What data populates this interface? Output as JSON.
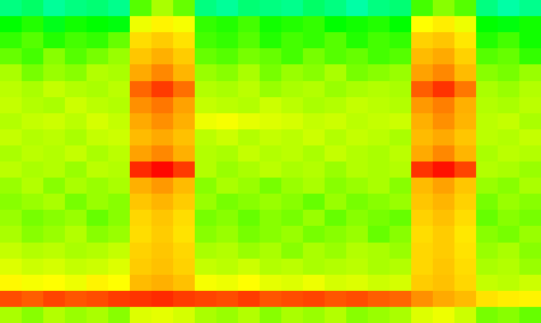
{
  "chart_data": {
    "type": "heatmap",
    "tick_labels": false,
    "color_range": [
      0,
      10
    ],
    "cells": [
      [
        3,
        3.2,
        2.8,
        3,
        3.1,
        2.9,
        4.5,
        5,
        4.6,
        3,
        2.8,
        3.1,
        3,
        2.9,
        3.2,
        3,
        2.7,
        3,
        3.1,
        4.4,
        4.8,
        4.5,
        3,
        2.7,
        2.9
      ],
      [
        4,
        4.2,
        3.8,
        4.1,
        4,
        3.9,
        5.8,
        6.2,
        5.9,
        4.3,
        4.2,
        4.4,
        4.1,
        4.2,
        4.3,
        4,
        4.1,
        4.2,
        4,
        6,
        6.3,
        5.8,
        4,
        3.9,
        4.1
      ],
      [
        4.3,
        4.5,
        4.2,
        4.4,
        4.3,
        4.6,
        6.6,
        6.9,
        6.5,
        4.4,
        4.3,
        4.5,
        4.2,
        4.4,
        4.3,
        4.5,
        4.2,
        4.4,
        4.3,
        6.8,
        7,
        6.4,
        4.2,
        4.4,
        4.1
      ],
      [
        4.6,
        4.4,
        4.8,
        4.5,
        4.7,
        4.9,
        7,
        7.4,
        6.9,
        4.6,
        4.5,
        4.7,
        4.6,
        4.4,
        4.7,
        4.5,
        4.6,
        4.4,
        4.5,
        7.2,
        7.5,
        6.8,
        4.5,
        4.6,
        4.3
      ],
      [
        5,
        4.7,
        4.9,
        4.8,
        5.1,
        5,
        7.5,
        7.9,
        7.3,
        4.9,
        4.8,
        5,
        4.7,
        4.9,
        4.8,
        5,
        4.7,
        4.8,
        4.9,
        7.6,
        7.9,
        7.2,
        4.8,
        4.7,
        4.9
      ],
      [
        5.2,
        5,
        5.3,
        5.1,
        5,
        5.2,
        8.3,
        8.8,
        8.2,
        5.1,
        5,
        5.2,
        4.9,
        5,
        5.1,
        4.9,
        5,
        5.1,
        5,
        8.4,
        8.9,
        8.1,
        5,
        4.9,
        5.1
      ],
      [
        5.3,
        5.1,
        5,
        5.4,
        5.2,
        5.1,
        7.8,
        8.1,
        7.6,
        5.3,
        5.2,
        5.1,
        5.4,
        5.2,
        5,
        5.1,
        5.3,
        5.2,
        5.1,
        7.7,
        8,
        7.4,
        5.1,
        5,
        5.2
      ],
      [
        5.1,
        5.3,
        5.4,
        5.2,
        5.5,
        5.3,
        7.5,
        7.8,
        7.4,
        5.8,
        5.9,
        5.7,
        5.6,
        5.5,
        5.3,
        5.4,
        5.2,
        5.3,
        5.4,
        7.4,
        7.8,
        7.3,
        5.2,
        5.3,
        5
      ],
      [
        5.3,
        5.1,
        5.2,
        5,
        5.3,
        5.4,
        7.2,
        7.5,
        7.1,
        5.2,
        5.4,
        5.1,
        5.3,
        5.2,
        5.4,
        5.1,
        5.3,
        5.2,
        5,
        7.2,
        7.5,
        7,
        5.2,
        5.1,
        5.3
      ],
      [
        5,
        5.2,
        5.1,
        5.3,
        5,
        5.2,
        7.6,
        7.9,
        7.4,
        5.1,
        5,
        5.3,
        5.1,
        5.2,
        5,
        5.3,
        5.1,
        5,
        5.2,
        7.5,
        7.9,
        7.3,
        5,
        5.2,
        5.1
      ],
      [
        5.2,
        5,
        5.1,
        4.9,
        5.2,
        5.1,
        9,
        9.4,
        8.8,
        5.1,
        4.9,
        5,
        5.2,
        5,
        5.1,
        4.9,
        5.1,
        5,
        5.1,
        8.9,
        9.3,
        8.7,
        5.1,
        5,
        4.9
      ],
      [
        4.9,
        5.1,
        4.8,
        5,
        4.9,
        5,
        7.4,
        7.7,
        7.2,
        4.8,
        5,
        4.9,
        4.7,
        4.9,
        5,
        4.8,
        4.9,
        5,
        4.8,
        7.2,
        7.6,
        7,
        4.9,
        4.8,
        5
      ],
      [
        4.8,
        4.9,
        5,
        4.7,
        4.9,
        4.8,
        7,
        7.3,
        6.9,
        4.9,
        4.7,
        4.8,
        4.9,
        4.8,
        4.6,
        4.9,
        4.7,
        4.8,
        4.9,
        7,
        7.3,
        6.8,
        4.7,
        4.9,
        4.8
      ],
      [
        4.9,
        4.7,
        4.8,
        4.9,
        4.6,
        4.8,
        6.7,
        7,
        6.6,
        4.7,
        4.8,
        4.6,
        4.8,
        4.7,
        4.9,
        4.6,
        4.8,
        4.7,
        4.6,
        6.8,
        7.1,
        6.6,
        4.6,
        4.8,
        4.7
      ],
      [
        5,
        4.8,
        4.9,
        5.1,
        4.8,
        4.9,
        6.6,
        6.9,
        6.5,
        4.8,
        4.9,
        4.7,
        4.8,
        4.9,
        4.7,
        4.8,
        4.9,
        4.6,
        4.8,
        6.6,
        6.9,
        6.4,
        4.8,
        4.7,
        4.9
      ],
      [
        5.3,
        5.1,
        5.2,
        5,
        5.1,
        5.3,
        6.8,
        7,
        6.7,
        5,
        5.1,
        4.9,
        5,
        4.8,
        5,
        4.9,
        5.1,
        5,
        4.9,
        6.7,
        6.9,
        6.5,
        4.9,
        5,
        4.8
      ],
      [
        5.6,
        5.4,
        5.5,
        5.3,
        5.4,
        5.6,
        6.9,
        7.1,
        6.8,
        5.3,
        5.2,
        5.4,
        5.1,
        5.2,
        5,
        5.1,
        5.2,
        5,
        5.1,
        6.7,
        7,
        6.6,
        5,
        5.1,
        4.9
      ],
      [
        6.1,
        5.9,
        6,
        5.8,
        6.2,
        6,
        7.2,
        7.4,
        7.1,
        5.9,
        5.8,
        6,
        5.7,
        5.6,
        5.8,
        5.5,
        5.6,
        5.4,
        5.5,
        6.9,
        7.1,
        6.7,
        5.3,
        5.2,
        5.4
      ],
      [
        8.6,
        8.4,
        8.7,
        8.5,
        8.6,
        8.8,
        8.9,
        9,
        8.8,
        8.7,
        8.6,
        8.8,
        8.5,
        8.6,
        8.7,
        8.5,
        8.6,
        8.4,
        8.3,
        7.8,
        7.5,
        7.2,
        6.5,
        6.3,
        6.2
      ],
      [
        5,
        4.8,
        5.1,
        4.9,
        5,
        4.8,
        5.6,
        5.7,
        5.5,
        5,
        4.9,
        5.1,
        4.8,
        5,
        4.9,
        5.1,
        4.8,
        4.9,
        5,
        5.6,
        5.8,
        5.4,
        4.7,
        4.8,
        4.6
      ]
    ]
  }
}
